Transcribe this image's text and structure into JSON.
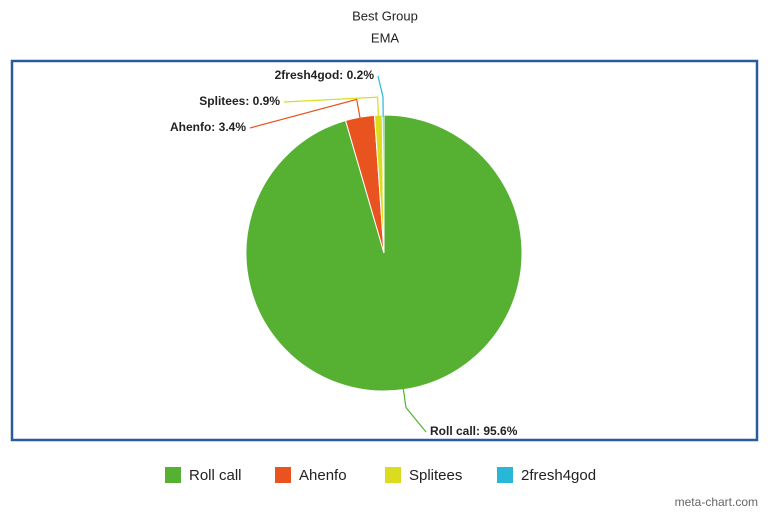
{
  "chart_data": {
    "type": "pie",
    "title": "Best Group",
    "subtitle": "EMA",
    "categories": [
      "Roll call",
      "Ahenfo",
      "Splitees",
      "2fresh4god"
    ],
    "values": [
      95.6,
      3.4,
      0.9,
      0.2
    ],
    "value_labels": [
      "Roll call: 95.6%",
      "Ahenfo: 3.4%",
      "Splitees: 0.9%",
      "2fresh4god: 0.2%"
    ],
    "colors": [
      "#56b133",
      "#e8531f",
      "#dcdc1e",
      "#27b8d8"
    ],
    "legend": "bottom"
  },
  "credit": "meta-chart.com"
}
